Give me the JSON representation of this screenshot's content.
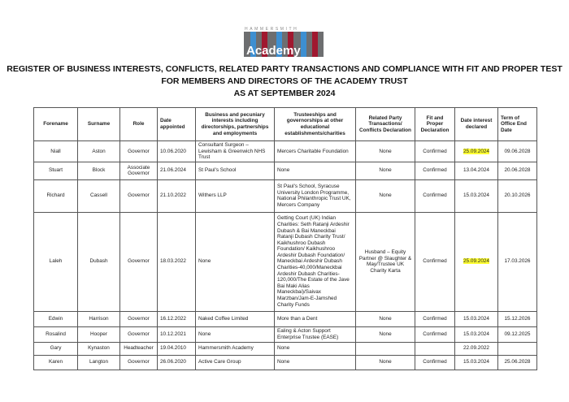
{
  "logo": {
    "brand": "HAMMERSMITH",
    "word": "Academy"
  },
  "title": [
    "REGISTER OF BUSINESS INTERESTS, CONFLICTS, RELATED PARTY TRANSACTIONS AND COMPLIANCE WITH FIT AND PROPER TEST",
    "FOR MEMBERS AND DIRECTORS OF THE ACADEMY TRUST",
    "AS AT SEPTEMBER 2024"
  ],
  "headers": [
    "Forename",
    "Surname",
    "Role",
    "Date appointed",
    "Business and pecuniary interests including directorships, partnerships and employments",
    "Trusteeships and governorships at other educational establishments/charities",
    "Related Party Transactions/ Conflicts Declaration",
    "Fit and Proper Declaration",
    "Date interest declared",
    "Term of Office End Date"
  ],
  "highlight_color": "#ffff33",
  "rows": [
    {
      "forename": "Niall",
      "surname": "Aston",
      "role": "Governor",
      "appointed": "10.06.2020",
      "business": "Consultant Surgeon – Lewisham & Greenwich NHS Trust",
      "trusteeships": "Mercers Charitable Foundation",
      "related": "None",
      "fit": "Confirmed",
      "declared": "25.09.2024",
      "declared_highlighted": true,
      "end": "09.06.2028"
    },
    {
      "forename": "Stuart",
      "surname": "Block",
      "role": "Associate Governor",
      "appointed": "21.06.2024",
      "business": "St Paul's School",
      "trusteeships": "None",
      "related": "None",
      "fit": "Confirmed",
      "declared": "13.04.2024",
      "declared_highlighted": false,
      "end": "20.06.2028"
    },
    {
      "forename": "Richard",
      "surname": "Cassell",
      "role": "Governor",
      "appointed": "21.10.2022",
      "business": "Withers LLP",
      "trusteeships": "St Paul's School, Syracuse University London Programme, National Philanthropic Trust UK, Mercers Company",
      "related": "None",
      "fit": "Confirmed",
      "declared": "15.03.2024",
      "declared_highlighted": false,
      "end": "20.10.2026"
    },
    {
      "forename": "Laleh",
      "surname": "Dubash",
      "role": "Governor",
      "appointed": "18.03.2022",
      "business": "None",
      "trusteeships": "Getting Court (UK) Indian Charities: Seth Ratanji Ardeshir Dubash & Bai Maneckbai Ratanji Dubash Charity Trust/ Kaikhushroo Dubash Foundation/ Kaikhushroo Ardeshir Dubash Foundation/ Maneckbai Ardeshir Dubash Charities-40,000/Maneckbai Ardeshir Dubash Charities-120,000/The Estate of the Jave Bai Maki Alias Maneckbai)/Saivax Marzban/Jam-E-Jamshed Charity Funds",
      "related": "Husband – Equity Partner @ Slaughter & May/Trustee UK Charity Karta",
      "fit": "Confirmed",
      "declared": "25.09.2024",
      "declared_highlighted": true,
      "end": "17.03.2026"
    },
    {
      "forename": "Edwin",
      "surname": "Harrison",
      "role": "Governor",
      "appointed": "16.12.2022",
      "business": "Naked Coffee Limited",
      "trusteeships": "More than a Dent",
      "related": "None",
      "fit": "Confirmed",
      "declared": "15.03.2024",
      "declared_highlighted": false,
      "end": "15.12.2026"
    },
    {
      "forename": "Rosalind",
      "surname": "Hooper",
      "role": "Governor",
      "appointed": "10.12.2021",
      "business": "None",
      "trusteeships": "Ealing & Acton Support Enterprise Trustee (EASE)",
      "related": "None",
      "fit": "Confirmed",
      "declared": "15.03.2024",
      "declared_highlighted": false,
      "end": "09.12.2025"
    },
    {
      "forename": "Gary",
      "surname": "Kynaston",
      "role": "Headteacher",
      "appointed": "19.04.2010",
      "business": "Hammersmith Academy",
      "trusteeships": "None",
      "related": "",
      "fit": "",
      "declared": "22.09.2022",
      "declared_highlighted": false,
      "end": ""
    },
    {
      "forename": "Karen",
      "surname": "Langton",
      "role": "Governor",
      "appointed": "26.06.2020",
      "business": "Active Care Group",
      "trusteeships": "None",
      "related": "None",
      "fit": "Confirmed",
      "declared": "15.03.2024",
      "declared_highlighted": false,
      "end": "25.06.2028"
    }
  ]
}
